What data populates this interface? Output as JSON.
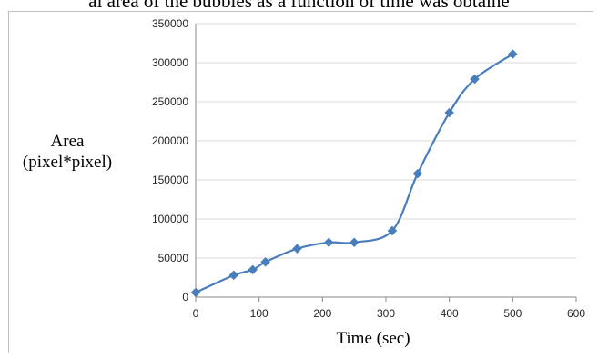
{
  "caption_fragment": "al area of the bubbles as a function of time was obtaine",
  "colors": {
    "series": "#4a7ebb",
    "grid": "#d9d9d9",
    "axis": "#888888",
    "frame": "#bfbfbf"
  },
  "chart_data": {
    "type": "scatter",
    "title": "",
    "xlabel": "Time (sec)",
    "ylabel_lines": [
      "Area",
      "(pixel*pixel)"
    ],
    "xlim": [
      0,
      600
    ],
    "ylim": [
      0,
      350000
    ],
    "xticks": [
      0,
      100,
      200,
      300,
      400,
      500,
      600
    ],
    "yticks": [
      0,
      50000,
      100000,
      150000,
      200000,
      250000,
      300000,
      350000
    ],
    "grid": "horizontal",
    "legend": "none",
    "line": "smooth",
    "marker": "diamond",
    "series": [
      {
        "x": [
          0,
          60,
          90,
          110,
          160,
          210,
          250,
          310,
          350,
          400,
          440,
          500
        ],
        "y": [
          6000,
          28000,
          35000,
          45000,
          62000,
          70000,
          70000,
          85000,
          158000,
          236000,
          279000,
          311000
        ]
      }
    ]
  }
}
